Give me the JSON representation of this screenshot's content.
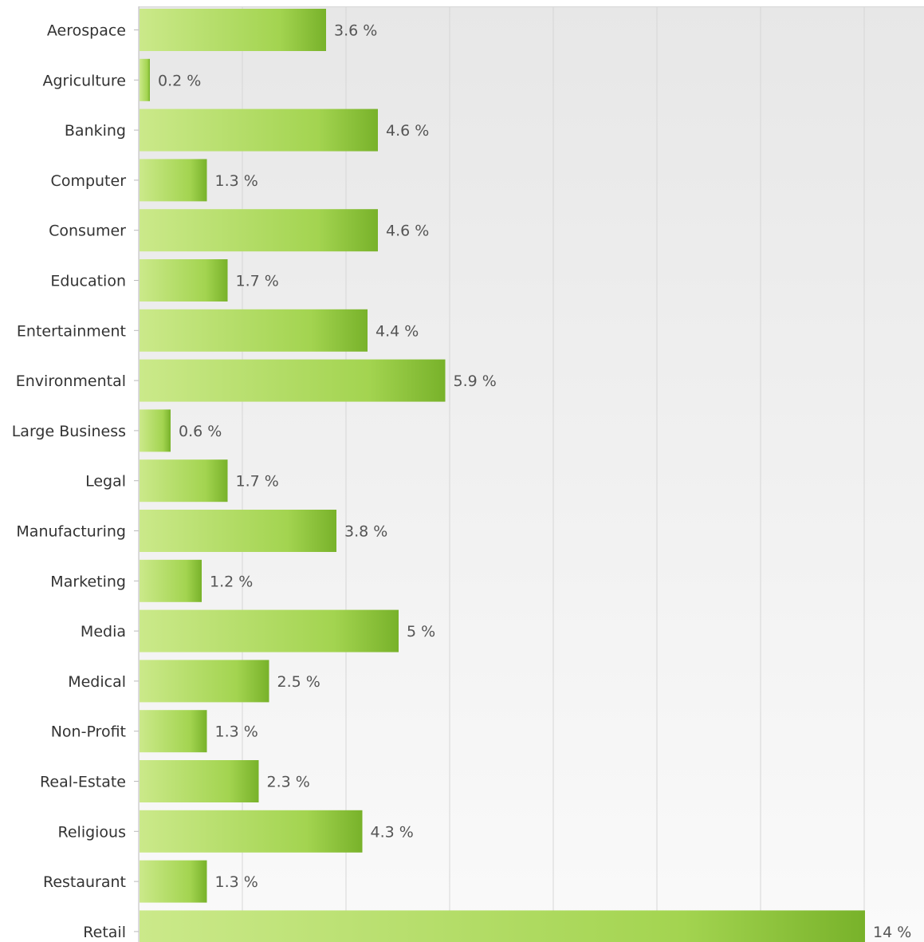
{
  "chart_data": {
    "type": "bar",
    "orientation": "horizontal",
    "categories": [
      "Aerospace",
      "Agriculture",
      "Banking",
      "Computer",
      "Consumer",
      "Education",
      "Entertainment",
      "Environmental",
      "Large Business",
      "Legal",
      "Manufacturing",
      "Marketing",
      "Media",
      "Medical",
      "Non-Profit",
      "Real-Estate",
      "Religious",
      "Restaurant",
      "Retail"
    ],
    "values": [
      3.6,
      0.2,
      4.6,
      1.3,
      4.6,
      1.7,
      4.4,
      5.9,
      0.6,
      1.7,
      3.8,
      1.2,
      5.0,
      2.5,
      1.3,
      2.3,
      4.3,
      1.3,
      14.0
    ],
    "value_labels": [
      "3.6 %",
      "0.2 %",
      "4.6 %",
      "1.3 %",
      "4.6 %",
      "1.7 %",
      "4.4 %",
      "5.9 %",
      "0.6 %",
      "1.7 %",
      "3.8 %",
      "1.2 %",
      "5 %",
      "2.5 %",
      "1.3 %",
      "2.3 %",
      "4.3 %",
      "1.3 %",
      "14 %"
    ],
    "xlim": [
      0,
      15
    ],
    "grid_step": 2,
    "grid": true,
    "title": "",
    "xlabel": "",
    "ylabel": "",
    "legend": "none",
    "colors": {
      "bar_light": "#cbe98a",
      "bar_mid": "#a3d450",
      "bar_dark": "#78b22a",
      "grid": "#d6d6d6",
      "plot_bg_top": "#e7e7e7",
      "plot_bg_bottom": "#fafafa",
      "axis": "#bbbbbb",
      "category_text": "#333333",
      "value_text": "#555555"
    }
  }
}
